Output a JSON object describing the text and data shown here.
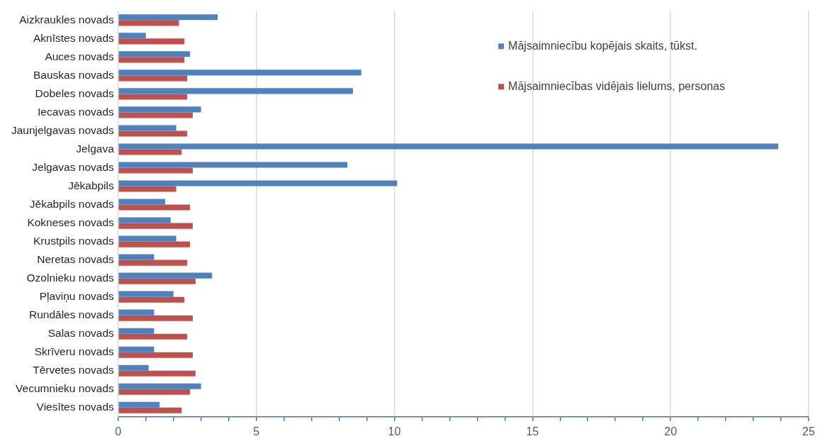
{
  "chart_data": {
    "type": "bar",
    "orientation": "horizontal",
    "categories": [
      "Aizkraukles novads",
      "Aknīstes novads",
      "Auces novads",
      "Bauskas novads",
      "Dobeles novads",
      "Iecavas novads",
      "Jaunjelgavas novads",
      "Jelgava",
      "Jelgavas novads",
      "Jēkabpils",
      "Jēkabpils novads",
      "Kokneses novads",
      "Krustpils novads",
      "Neretas novads",
      "Ozolnieku novads",
      "Pļaviņu novads",
      "Rundāles novads",
      "Salas novads",
      "Skrīveru novads",
      "Tērvetes novads",
      "Vecumnieku novads",
      "Viesītes novads"
    ],
    "series": [
      {
        "name": "Mājsaimniecību kopējais skaits, tūkst.",
        "color": "#4f81bd",
        "values": [
          3.6,
          1.0,
          2.6,
          8.8,
          8.5,
          3.0,
          2.1,
          23.9,
          8.3,
          10.1,
          1.7,
          1.9,
          2.1,
          1.3,
          3.4,
          2.0,
          1.3,
          1.3,
          1.3,
          1.1,
          3.0,
          1.5
        ]
      },
      {
        "name": "Mājsaimniecības vidējais lielums, personas",
        "color": "#c0504d",
        "values": [
          2.2,
          2.4,
          2.4,
          2.5,
          2.5,
          2.7,
          2.5,
          2.3,
          2.7,
          2.1,
          2.6,
          2.7,
          2.6,
          2.5,
          2.8,
          2.4,
          2.7,
          2.5,
          2.7,
          2.8,
          2.6,
          2.3
        ]
      }
    ],
    "xlim": [
      0,
      25
    ],
    "xticks": [
      0,
      {
        "value": 1,
        "label": null
      },
      {
        "value": 2,
        "label": null
      },
      {
        "value": 3,
        "label": null
      },
      {
        "value": 4,
        "label": null
      },
      5,
      {
        "value": 6,
        "label": null
      },
      {
        "value": 7,
        "label": null
      },
      {
        "value": 8,
        "label": null
      },
      {
        "value": 9,
        "label": null
      },
      10,
      {
        "value": 11,
        "label": null
      },
      {
        "value": 12,
        "label": null
      },
      {
        "value": 13,
        "label": null
      },
      {
        "value": 14,
        "label": null
      },
      15,
      {
        "value": 16,
        "label": null
      },
      {
        "value": 17,
        "label": null
      },
      {
        "value": 18,
        "label": null
      },
      {
        "value": 19,
        "label": null
      },
      20,
      {
        "value": 21,
        "label": null
      },
      {
        "value": 22,
        "label": null
      },
      {
        "value": 23,
        "label": null
      },
      {
        "value": 24,
        "label": null
      },
      25
    ],
    "grid": "x",
    "legend": "top right"
  }
}
